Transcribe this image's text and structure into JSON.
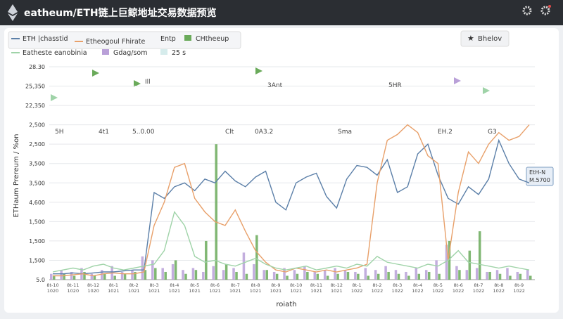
{
  "header": {
    "title": "eatheum/ETH链上巨鲸地址交易数据预览"
  },
  "button": {
    "label": "Bhelov"
  },
  "legend_extra": [
    "Entp",
    "25 s"
  ],
  "tooltip": {
    "lines": [
      "EtH-N",
      "M.5700"
    ]
  },
  "annotations": [
    "5H",
    "4t1",
    "5..0.00",
    "Clt",
    "0A3.2",
    "Sma",
    "EH.2",
    "G3",
    "3Ant",
    "5HR",
    "Ill"
  ],
  "chart_data": {
    "type": "line",
    "y_label": "ETHaum Prereum / %on",
    "x_label": "roiath",
    "ylim": [
      0,
      11
    ],
    "yticks": [
      {
        "value": 0,
        "label": "5.0"
      },
      {
        "value": 1,
        "label": "1,500"
      },
      {
        "value": 2,
        "label": "1,500"
      },
      {
        "value": 3,
        "label": "1,500"
      },
      {
        "value": 4,
        "label": "4,600"
      },
      {
        "value": 5,
        "label": "3,500"
      },
      {
        "value": 6,
        "label": "3,500"
      },
      {
        "value": 7,
        "label": "2,500"
      },
      {
        "value": 8,
        "label": "2,500"
      },
      {
        "value": 9,
        "label": "22,350"
      },
      {
        "value": 10,
        "label": "25,350"
      },
      {
        "value": 11,
        "label": "28.30"
      }
    ],
    "grid": true,
    "categories": [
      "8t-10 1020",
      null,
      "8t-11 1020",
      null,
      "8t-12 1020",
      null,
      "8t-1 1021",
      null,
      "8t-2 1021",
      null,
      "8t-3 1021",
      null,
      "8t-4 1021",
      null,
      "8t-5 1021",
      null,
      "8t-6 1021",
      null,
      "8t-7 1021",
      null,
      "8t-8 1021",
      null,
      "8t-9 1021",
      null,
      "8t-10 1021",
      null,
      "8t-11 1021",
      null,
      "8t-12 1021",
      null,
      "8t-1 1022",
      null,
      "8t-2 1022",
      null,
      "8t-3 1022",
      null,
      "8t-4 1022",
      null,
      "8t-5 1022",
      null,
      "8t-6 1022",
      null,
      "8t-7 1022",
      null,
      "8t-8 1022",
      null,
      "8t-9 1022",
      null
    ],
    "series": [
      {
        "name": "ETH |chasstid",
        "color": "#5b7fa8",
        "kind": "line",
        "values": [
          0.3,
          0.3,
          0.35,
          0.3,
          0.35,
          0.4,
          0.4,
          0.45,
          0.5,
          0.5,
          4.5,
          4.2,
          4.8,
          5.0,
          4.6,
          5.2,
          5.0,
          5.6,
          5.1,
          4.8,
          5.3,
          5.6,
          4.0,
          3.6,
          5.0,
          5.3,
          5.5,
          4.3,
          3.7,
          5.2,
          5.9,
          5.8,
          5.4,
          6.2,
          4.5,
          4.8,
          6.5,
          7.0,
          5.4,
          4.2,
          3.9,
          4.8,
          4.4,
          5.2,
          7.2,
          6.0,
          5.2,
          5.0
        ]
      },
      {
        "name": "Etheogoul Fhirate",
        "color": "#e8a06a",
        "kind": "line",
        "values": [
          0.2,
          0.2,
          0.25,
          0.3,
          0.2,
          0.3,
          0.35,
          0.3,
          0.3,
          0.4,
          2.8,
          4.0,
          5.8,
          6.0,
          4.2,
          3.5,
          3.0,
          2.8,
          3.6,
          2.5,
          1.5,
          0.9,
          0.5,
          0.4,
          0.6,
          0.5,
          0.4,
          0.5,
          0.4,
          0.5,
          0.6,
          0.8,
          5.0,
          7.2,
          7.5,
          8.0,
          7.6,
          6.4,
          6.0,
          1.0,
          4.5,
          6.6,
          6.0,
          7.0,
          7.6,
          7.2,
          7.4,
          8.0
        ]
      },
      {
        "name": "Eatheste eanobinia",
        "color": "#9fd3a8",
        "kind": "line",
        "values": [
          0.4,
          0.5,
          0.6,
          0.5,
          0.7,
          0.8,
          0.6,
          0.5,
          0.6,
          0.7,
          0.8,
          1.5,
          3.5,
          2.8,
          1.2,
          0.9,
          1.0,
          0.8,
          0.7,
          0.9,
          1.1,
          0.8,
          0.6,
          0.5,
          0.6,
          0.7,
          0.5,
          0.6,
          0.7,
          0.6,
          0.8,
          0.7,
          1.2,
          0.9,
          0.8,
          0.7,
          0.6,
          0.8,
          0.7,
          1.0,
          1.5,
          0.9,
          0.8,
          0.7,
          0.6,
          0.7,
          0.6,
          0.5
        ]
      },
      {
        "name": "Gdag/som",
        "color": "#b9a0d8",
        "kind": "bar",
        "values": [
          0.3,
          0.5,
          0.4,
          0.6,
          0.3,
          0.5,
          0.7,
          0.4,
          0.5,
          1.2,
          1.0,
          0.6,
          0.8,
          0.5,
          0.6,
          0.4,
          0.7,
          0.5,
          0.6,
          1.4,
          0.8,
          0.5,
          0.4,
          0.6,
          0.5,
          0.7,
          0.4,
          0.5,
          0.6,
          0.5,
          0.4,
          0.6,
          0.5,
          0.7,
          0.5,
          0.4,
          0.6,
          0.5,
          1.0,
          1.8,
          0.7,
          0.5,
          0.6,
          0.4,
          0.5,
          0.6,
          0.4,
          0.5
        ]
      },
      {
        "name": "CHtheeup",
        "color": "#6aaa5a",
        "kind": "bar",
        "values": [
          0.2,
          0.3,
          0.2,
          0.4,
          0.2,
          0.3,
          0.2,
          0.3,
          0.4,
          0.5,
          0.6,
          0.4,
          1.0,
          0.3,
          0.5,
          2.0,
          7.0,
          0.8,
          0.4,
          0.3,
          2.3,
          0.5,
          0.3,
          0.2,
          0.3,
          0.4,
          0.3,
          0.2,
          0.3,
          0.4,
          0.3,
          0.2,
          0.3,
          0.4,
          0.3,
          0.2,
          0.3,
          0.4,
          0.3,
          2.0,
          0.5,
          1.5,
          2.5,
          0.4,
          0.3,
          0.2,
          0.3,
          0.2
        ]
      }
    ]
  }
}
